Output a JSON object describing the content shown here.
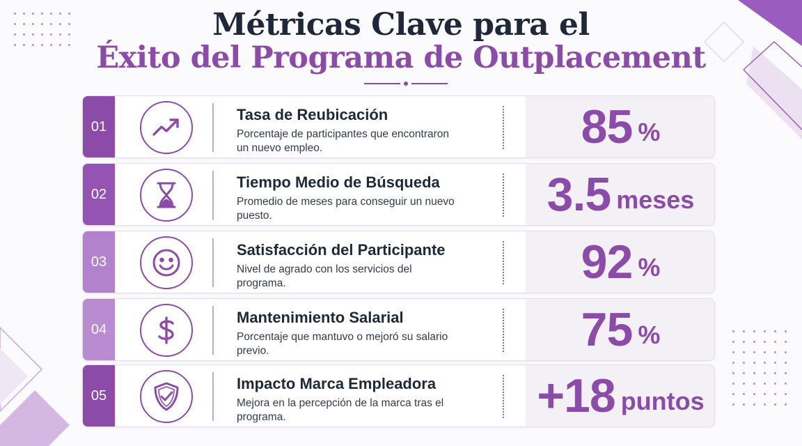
{
  "title": {
    "line1": "Métricas Clave para el",
    "line2": "Éxito del Programa de Outplacement"
  },
  "colors": {
    "accent": "#8c4aa9",
    "accent_light": "#b985d0",
    "title_dark": "#1e2838",
    "value_bg": "#f3f1f5"
  },
  "metrics": [
    {
      "number": "01",
      "icon": "trend-up-icon",
      "title": "Tasa de Reubicación",
      "description": "Porcentaje de participantes que encontraron un nuevo empleo.",
      "value": "85",
      "unit": "%",
      "tab_color": "#8c4aa9"
    },
    {
      "number": "02",
      "icon": "hourglass-icon",
      "title": "Tiempo Medio de Búsqueda",
      "description": "Promedio de meses para conseguir un nuevo puesto.",
      "value": "3.5",
      "unit": "meses",
      "tab_color": "#9553b3"
    },
    {
      "number": "03",
      "icon": "smiley-icon",
      "title": "Satisfacción del Participante",
      "description": "Nivel de agrado con los servicios del programa.",
      "value": "92",
      "unit": "%",
      "tab_color": "#b283cc"
    },
    {
      "number": "04",
      "icon": "dollar-icon",
      "title": "Mantenimiento Salarial",
      "description": "Porcentaje que mantuvo o mejoró su salario previo.",
      "value": "75",
      "unit": "%",
      "tab_color": "#b98bd1"
    },
    {
      "number": "05",
      "icon": "shield-check-icon",
      "title": "Impacto Marca Empleadora",
      "description": "Mejora en la percepción de la marca tras el programa.",
      "value": "+18",
      "unit": "puntos",
      "tab_color": "#8c4aa9"
    }
  ]
}
